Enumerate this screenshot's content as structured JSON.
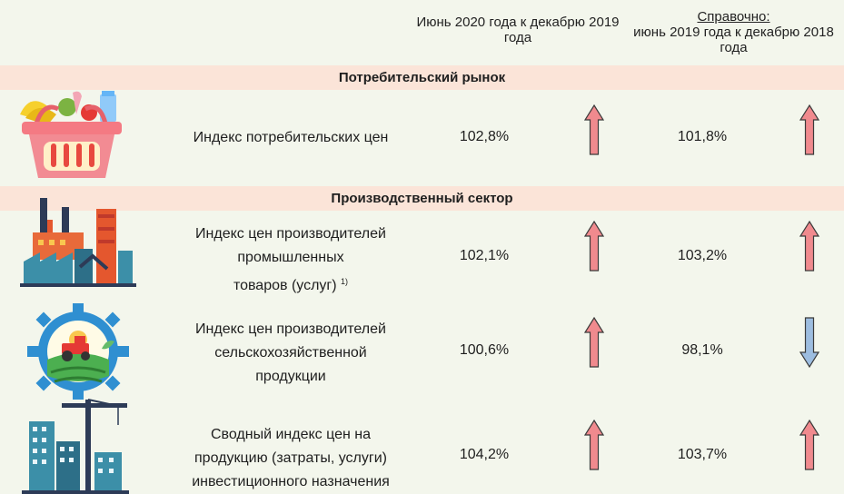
{
  "header": {
    "current_period": "Июнь 2020 года к декабрю 2019 года",
    "reference_title": "Справочно:",
    "reference_period": "июнь 2019 года к декабрю 2018 года"
  },
  "sections": [
    {
      "title": "Потребительский рынок"
    },
    {
      "title": "Производственный сектор"
    }
  ],
  "rows": [
    {
      "icon": "shopping-basket-icon",
      "label_lines": [
        "Индекс потребительских цен"
      ],
      "current": "102,8%",
      "current_trend": "up",
      "reference": "101,8%",
      "reference_trend": "up"
    },
    {
      "icon": "factory-icon",
      "label_lines": [
        "Индекс цен производителей",
        "промышленных",
        "товаров (услуг)"
      ],
      "footnote": "1)",
      "current": "102,1%",
      "current_trend": "up",
      "reference": "103,2%",
      "reference_trend": "up"
    },
    {
      "icon": "agriculture-tractor-gear-icon",
      "label_lines": [
        "Индекс цен производителей",
        "сельскохозяйственной",
        "продукции"
      ],
      "current": "100,6%",
      "current_trend": "up",
      "reference": "98,1%",
      "reference_trend": "down"
    },
    {
      "icon": "construction-crane-icon",
      "label_lines": [
        "Сводный индекс цен на",
        "продукцию (затраты, услуги)",
        "инвестиционного назначения"
      ],
      "current": "104,2%",
      "current_trend": "up",
      "reference": "103,7%",
      "reference_trend": "up"
    }
  ],
  "colors": {
    "background": "#f3f6ec",
    "section_band": "#fbe4d8",
    "arrow_up_fill": "#f08a8e",
    "arrow_down_fill": "#9dbde0"
  }
}
